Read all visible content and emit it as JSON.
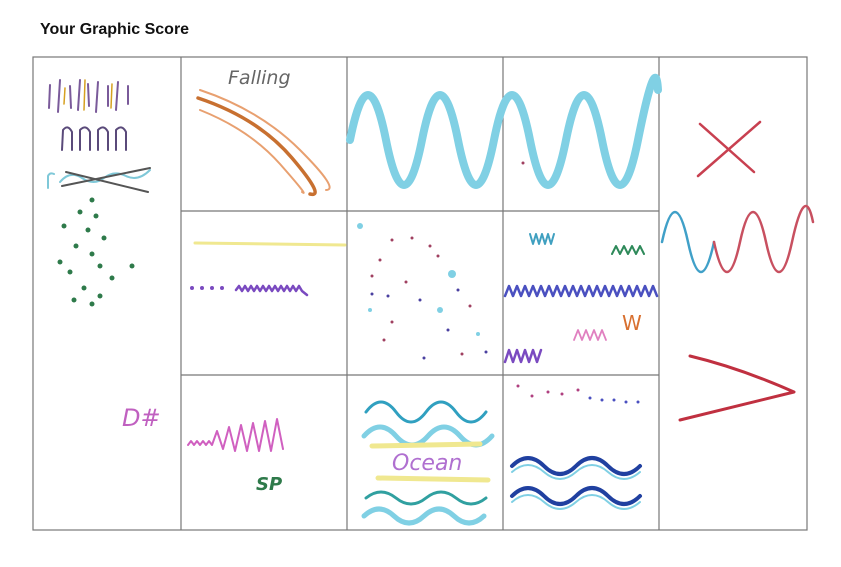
{
  "header": {
    "title": "Your Graphic Score"
  },
  "score": {
    "handwriting": [
      "Falling",
      "D#",
      "SP",
      "Ocean",
      "W"
    ]
  }
}
